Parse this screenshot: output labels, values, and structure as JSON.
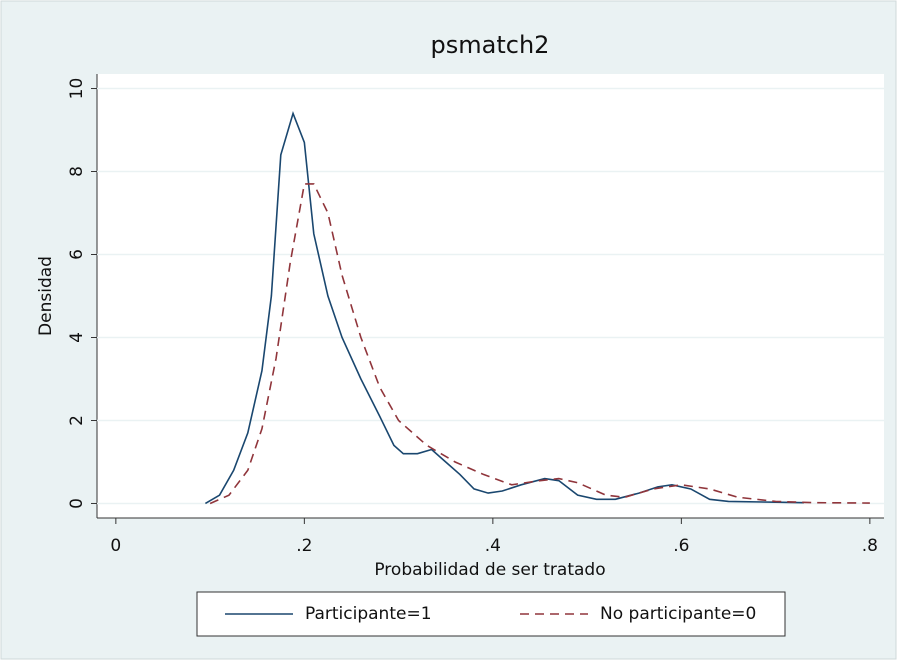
{
  "chart_data": {
    "type": "line",
    "title": "psmatch2",
    "x_label": "Probabilidad de ser tratado",
    "y_label": "Densidad",
    "xlim": [
      -0.02,
      0.815
    ],
    "ylim": [
      -0.35,
      10.35
    ],
    "xticks": [
      0,
      {
        "value": 0.2,
        "label": ".2"
      },
      {
        "value": 0.4,
        "label": ".4"
      },
      {
        "value": 0.6,
        "label": ".6"
      },
      {
        "value": 0.8,
        "label": ".8"
      }
    ],
    "yticks": [
      0,
      2,
      4,
      6,
      8,
      10
    ],
    "grid": true,
    "legend": "bottom",
    "series": [
      {
        "name": "Participante=1",
        "color": "#1a476f",
        "dash": "solid",
        "x": [
          0.095,
          0.11,
          0.125,
          0.14,
          0.155,
          0.165,
          0.175,
          0.188,
          0.2,
          0.21,
          0.225,
          0.24,
          0.26,
          0.28,
          0.295,
          0.305,
          0.32,
          0.335,
          0.35,
          0.365,
          0.38,
          0.395,
          0.41,
          0.43,
          0.455,
          0.47,
          0.49,
          0.51,
          0.53,
          0.555,
          0.575,
          0.59,
          0.61,
          0.63,
          0.65,
          0.7,
          0.73
        ],
        "values": [
          0,
          0.2,
          0.8,
          1.7,
          3.2,
          5,
          8.4,
          9.4,
          8.7,
          6.5,
          5,
          4,
          3,
          2.1,
          1.4,
          1.2,
          1.2,
          1.3,
          1.0,
          0.7,
          0.35,
          0.25,
          0.3,
          0.45,
          0.6,
          0.55,
          0.2,
          0.1,
          0.1,
          0.25,
          0.4,
          0.45,
          0.35,
          0.1,
          0.05,
          0.03,
          0.02
        ]
      },
      {
        "name": "No participante=0",
        "color": "#90353b",
        "dash": "dashed",
        "x": [
          0.1,
          0.12,
          0.14,
          0.155,
          0.17,
          0.185,
          0.2,
          0.21,
          0.225,
          0.24,
          0.26,
          0.28,
          0.3,
          0.33,
          0.36,
          0.39,
          0.42,
          0.45,
          0.47,
          0.49,
          0.52,
          0.54,
          0.57,
          0.6,
          0.63,
          0.66,
          0.7,
          0.74,
          0.8
        ],
        "values": [
          0,
          0.2,
          0.8,
          1.8,
          3.5,
          5.8,
          7.7,
          7.7,
          7,
          5.5,
          4,
          2.8,
          2,
          1.4,
          1.0,
          0.7,
          0.45,
          0.55,
          0.6,
          0.5,
          0.2,
          0.15,
          0.35,
          0.45,
          0.35,
          0.15,
          0.05,
          0.02,
          0.01
        ]
      }
    ]
  }
}
